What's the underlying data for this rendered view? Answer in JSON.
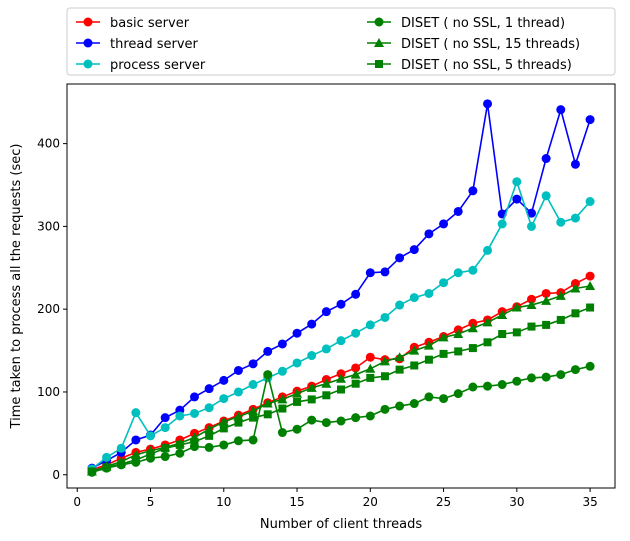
{
  "chart_data": {
    "type": "line",
    "title": "",
    "xlabel": "Number of client threads",
    "ylabel": "Time taken to process all the requests (sec)",
    "xlim": [
      -0.7,
      36.7
    ],
    "ylim": [
      -16,
      472
    ],
    "xticks": [
      0,
      5,
      10,
      15,
      20,
      25,
      30,
      35
    ],
    "yticks": [
      0,
      100,
      200,
      300,
      400
    ],
    "grid": false,
    "legend_position": "top",
    "x": [
      1,
      2,
      3,
      4,
      5,
      6,
      7,
      8,
      9,
      10,
      11,
      12,
      13,
      14,
      15,
      16,
      17,
      18,
      19,
      20,
      21,
      22,
      23,
      24,
      25,
      26,
      27,
      28,
      29,
      30,
      31,
      32,
      33,
      34,
      35
    ],
    "series": [
      {
        "name": "basic server",
        "color": "#ff0000",
        "marker": "circle",
        "values": [
          6,
          12,
          20,
          27,
          31,
          36,
          42,
          50,
          57,
          65,
          72,
          79,
          87,
          94,
          101,
          107,
          115,
          122,
          129,
          142,
          139,
          140,
          154,
          160,
          167,
          175,
          183,
          187,
          197,
          203,
          212,
          219,
          220,
          231,
          240
        ]
      },
      {
        "name": "thread server",
        "color": "#0000ff",
        "marker": "circle",
        "values": [
          8,
          17,
          27,
          42,
          48,
          69,
          78,
          94,
          104,
          114,
          126,
          134,
          149,
          158,
          171,
          182,
          197,
          206,
          218,
          244,
          245,
          262,
          272,
          291,
          303,
          318,
          343,
          448,
          315,
          333,
          316,
          382,
          441,
          375,
          429
        ]
      },
      {
        "name": "process server",
        "color": "#00bfbf",
        "marker": "circle",
        "values": [
          7,
          21,
          32,
          75,
          47,
          57,
          71,
          74,
          81,
          92,
          100,
          109,
          117,
          125,
          135,
          144,
          152,
          162,
          171,
          181,
          190,
          205,
          214,
          219,
          232,
          244,
          247,
          271,
          303,
          354,
          300,
          337,
          305,
          310,
          330
        ]
      },
      {
        "name": "DISET ( no SSL, 1 thread)",
        "color": "#008000",
        "marker": "circle",
        "values": [
          3,
          8,
          12,
          15,
          20,
          22,
          26,
          34,
          33,
          36,
          41,
          42,
          121,
          51,
          55,
          66,
          63,
          65,
          69,
          71,
          79,
          83,
          86,
          94,
          92,
          98,
          106,
          107,
          109,
          113,
          117,
          118,
          121,
          127,
          131
        ]
      },
      {
        "name": "DISET ( no SSL, 15 threads)",
        "color": "#008000",
        "marker": "triangle",
        "values": [
          4,
          10,
          16,
          24,
          29,
          33,
          38,
          45,
          55,
          64,
          70,
          77,
          86,
          91,
          98,
          105,
          110,
          116,
          121,
          128,
          137,
          142,
          150,
          156,
          166,
          170,
          177,
          184,
          193,
          202,
          205,
          210,
          216,
          225,
          228
        ]
      },
      {
        "name": "DISET ( no SSL, 5 threads)",
        "color": "#008000",
        "marker": "square",
        "values": [
          4,
          9,
          13,
          18,
          25,
          32,
          36,
          40,
          47,
          56,
          63,
          69,
          73,
          80,
          88,
          91,
          96,
          103,
          110,
          117,
          119,
          127,
          132,
          139,
          146,
          149,
          153,
          160,
          170,
          172,
          179,
          181,
          187,
          195,
          202
        ]
      }
    ]
  }
}
